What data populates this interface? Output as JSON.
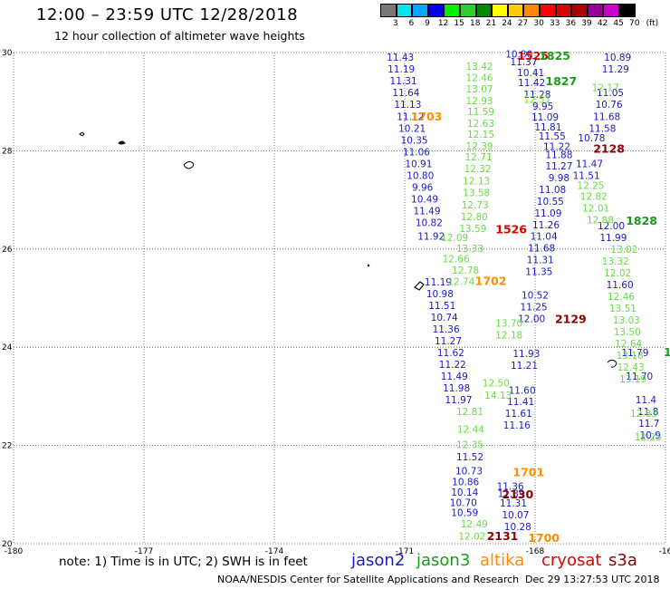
{
  "header": {
    "title": "12:00  –  23:59 UTC 12/28/2018",
    "subtitle": "12 hour collection of altimeter wave heights"
  },
  "colors": {
    "jason2": "#1a1acc",
    "jason3": "#1a9a1a",
    "altika": "#ff8c00",
    "cryosat": "#dd0000",
    "s3a": "#8b0000",
    "light_green": "#66dd44"
  },
  "color_scale": {
    "unit": "(ft)",
    "bins": [
      {
        "label": "3",
        "color": "#777777"
      },
      {
        "label": "6",
        "color": "#00e5ee"
      },
      {
        "label": "9",
        "color": "#00a8ff"
      },
      {
        "label": "12",
        "color": "#0000ee"
      },
      {
        "label": "15",
        "color": "#00ee00"
      },
      {
        "label": "18",
        "color": "#33cc33"
      },
      {
        "label": "21",
        "color": "#008800"
      },
      {
        "label": "24",
        "color": "#ffff00"
      },
      {
        "label": "27",
        "color": "#ffcc00"
      },
      {
        "label": "30",
        "color": "#ff8800"
      },
      {
        "label": "33",
        "color": "#ff0000"
      },
      {
        "label": "36",
        "color": "#dd0000"
      },
      {
        "label": "39",
        "color": "#aa0000"
      },
      {
        "label": "42",
        "color": "#990099"
      },
      {
        "label": "45",
        "color": "#cc00cc"
      },
      {
        "label": "70",
        "color": "#000000"
      }
    ]
  },
  "axes": {
    "lon_labels": [
      "-180",
      "-177",
      "-174",
      "-171",
      "-168",
      "-16"
    ],
    "lat_labels": [
      "30",
      "28",
      "26",
      "24",
      "22",
      "20"
    ]
  },
  "footer": {
    "note": "note:  1) Time is in UTC;  2) SWH is in feet",
    "credit": "NOAA/NESDIS Center for Satellite Applications and Research",
    "timestamp": "Dec 29 13:27:53 UTC 2018"
  },
  "satellites": [
    {
      "name": "jason2",
      "color": "#1a1acc"
    },
    {
      "name": "jason3",
      "color": "#1a9a1a"
    },
    {
      "name": "altika",
      "color": "#ff8c00"
    },
    {
      "name": "cryosat",
      "color": "#dd0000"
    },
    {
      "name": "s3a",
      "color": "#8b0000"
    }
  ],
  "tracks": [
    {
      "satellite": "jason2",
      "color": "#1a1acc",
      "points": [
        {
          "lat": 29.83,
          "lon": -171.1,
          "swh": "11.43"
        },
        {
          "lat": 29.59,
          "lon": -171.08,
          "swh": "11.19"
        },
        {
          "lat": 29.35,
          "lon": -171.03,
          "swh": "11.31"
        },
        {
          "lat": 29.11,
          "lon": -170.97,
          "swh": "11.64"
        },
        {
          "lat": 28.87,
          "lon": -170.93,
          "swh": "11.13"
        },
        {
          "lat": 28.63,
          "lon": -170.87,
          "swh": "11.12"
        },
        {
          "lat": 28.39,
          "lon": -170.83,
          "swh": "10.21"
        },
        {
          "lat": 28.15,
          "lon": -170.78,
          "swh": "10.35"
        },
        {
          "lat": 27.91,
          "lon": -170.73,
          "swh": "11.06"
        },
        {
          "lat": 27.67,
          "lon": -170.68,
          "swh": "10.91"
        },
        {
          "lat": 27.43,
          "lon": -170.64,
          "swh": "10.80"
        },
        {
          "lat": 27.19,
          "lon": -170.59,
          "swh": "9.96"
        },
        {
          "lat": 26.95,
          "lon": -170.54,
          "swh": "10.49"
        },
        {
          "lat": 26.71,
          "lon": -170.49,
          "swh": "11.49"
        },
        {
          "lat": 26.47,
          "lon": -170.44,
          "swh": "10.82"
        },
        {
          "lat": 26.19,
          "lon": -170.39,
          "swh": "11.92"
        },
        {
          "lat": 25.26,
          "lon": -170.23,
          "swh": "11.19"
        },
        {
          "lat": 25.02,
          "lon": -170.19,
          "swh": "10.98"
        },
        {
          "lat": 24.78,
          "lon": -170.14,
          "swh": "11.51"
        },
        {
          "lat": 24.54,
          "lon": -170.09,
          "swh": "10.74"
        },
        {
          "lat": 24.3,
          "lon": -170.05,
          "swh": "11.36"
        },
        {
          "lat": 24.06,
          "lon": -170.0,
          "swh": "11.27"
        },
        {
          "lat": 23.82,
          "lon": -169.94,
          "swh": "11.62"
        },
        {
          "lat": 23.58,
          "lon": -169.9,
          "swh": "11.22"
        },
        {
          "lat": 23.34,
          "lon": -169.86,
          "swh": "11.49"
        },
        {
          "lat": 23.1,
          "lon": -169.81,
          "swh": "11.98"
        },
        {
          "lat": 22.86,
          "lon": -169.76,
          "swh": "11.97"
        },
        {
          "lat": 21.7,
          "lon": -169.5,
          "swh": "11.52"
        },
        {
          "lat": 21.41,
          "lon": -169.52,
          "swh": "10.73"
        },
        {
          "lat": 21.19,
          "lon": -169.6,
          "swh": "10.86"
        },
        {
          "lat": 20.98,
          "lon": -169.62,
          "swh": "10.14"
        },
        {
          "lat": 20.77,
          "lon": -169.65,
          "swh": "10.70"
        },
        {
          "lat": 20.56,
          "lon": -169.62,
          "swh": "10.59"
        }
      ]
    },
    {
      "satellite": "jason2",
      "color": "#1a1acc",
      "points": [
        {
          "lat": 29.9,
          "lon": -168.37,
          "swh": "10.80"
        },
        {
          "lat": 29.74,
          "lon": -168.26,
          "swh": "11.37"
        },
        {
          "lat": 29.52,
          "lon": -168.1,
          "swh": "10.41"
        },
        {
          "lat": 29.32,
          "lon": -168.08,
          "swh": "11.42"
        },
        {
          "lat": 29.08,
          "lon": -167.95,
          "swh": "11.28"
        },
        {
          "lat": 28.84,
          "lon": -167.82,
          "swh": "9.95"
        },
        {
          "lat": 28.62,
          "lon": -167.77,
          "swh": "11.09"
        },
        {
          "lat": 28.41,
          "lon": -167.7,
          "swh": "11.81"
        },
        {
          "lat": 28.23,
          "lon": -167.61,
          "swh": "11.55"
        },
        {
          "lat": 28.02,
          "lon": -167.5,
          "swh": "11.22"
        },
        {
          "lat": 27.85,
          "lon": -167.45,
          "swh": "11.88"
        },
        {
          "lat": 27.62,
          "lon": -167.45,
          "swh": "11.27"
        },
        {
          "lat": 27.38,
          "lon": -167.45,
          "swh": "9.98"
        },
        {
          "lat": 27.14,
          "lon": -167.6,
          "swh": "11.08"
        },
        {
          "lat": 26.9,
          "lon": -167.65,
          "swh": "10.55"
        },
        {
          "lat": 26.66,
          "lon": -167.7,
          "swh": "11.09"
        },
        {
          "lat": 26.42,
          "lon": -167.75,
          "swh": "11.26"
        },
        {
          "lat": 26.19,
          "lon": -167.8,
          "swh": "11.04"
        },
        {
          "lat": 25.95,
          "lon": -167.85,
          "swh": "11.68"
        },
        {
          "lat": 25.71,
          "lon": -167.88,
          "swh": "11.31"
        },
        {
          "lat": 25.47,
          "lon": -167.91,
          "swh": "11.35"
        },
        {
          "lat": 24.99,
          "lon": -168.0,
          "swh": "10.52"
        },
        {
          "lat": 24.75,
          "lon": -168.03,
          "swh": "11.25"
        },
        {
          "lat": 24.51,
          "lon": -168.08,
          "swh": "12.00"
        },
        {
          "lat": 23.8,
          "lon": -168.2,
          "swh": "11.93"
        },
        {
          "lat": 23.56,
          "lon": -168.25,
          "swh": "11.21"
        },
        {
          "lat": 23.05,
          "lon": -168.3,
          "swh": "11.60"
        },
        {
          "lat": 22.82,
          "lon": -168.33,
          "swh": "11.41"
        },
        {
          "lat": 22.58,
          "lon": -168.38,
          "swh": "11.61"
        },
        {
          "lat": 22.34,
          "lon": -168.42,
          "swh": "11.16"
        },
        {
          "lat": 21.1,
          "lon": -168.57,
          "swh": "11.36"
        },
        {
          "lat": 20.95,
          "lon": -168.55,
          "swh": "11.39"
        },
        {
          "lat": 20.76,
          "lon": -168.5,
          "swh": "11.31"
        },
        {
          "lat": 20.52,
          "lon": -168.45,
          "swh": "10.07"
        },
        {
          "lat": 20.28,
          "lon": -168.4,
          "swh": "10.28"
        }
      ]
    },
    {
      "satellite": "jason2",
      "color": "#1a1acc",
      "points": [
        {
          "lat": 29.83,
          "lon": -166.1,
          "swh": "10.89"
        },
        {
          "lat": 29.59,
          "lon": -166.15,
          "swh": "11.29"
        },
        {
          "lat": 29.11,
          "lon": -166.27,
          "swh": "11.05"
        },
        {
          "lat": 28.87,
          "lon": -166.3,
          "swh": "10.76"
        },
        {
          "lat": 28.63,
          "lon": -166.35,
          "swh": "11.68"
        },
        {
          "lat": 28.39,
          "lon": -166.45,
          "swh": "11.58"
        },
        {
          "lat": 28.19,
          "lon": -166.7,
          "swh": "10.78"
        },
        {
          "lat": 27.67,
          "lon": -166.75,
          "swh": "11.47"
        },
        {
          "lat": 27.43,
          "lon": -166.82,
          "swh": "11.51"
        },
        {
          "lat": 26.4,
          "lon": -166.25,
          "swh": "12.00"
        },
        {
          "lat": 26.16,
          "lon": -166.2,
          "swh": "11.99"
        },
        {
          "lat": 25.2,
          "lon": -166.05,
          "swh": "11.60"
        },
        {
          "lat": 23.82,
          "lon": -165.7,
          "swh": "11.79"
        },
        {
          "lat": 23.34,
          "lon": -165.6,
          "swh": "11.70"
        },
        {
          "lat": 22.86,
          "lon": -165.45,
          "swh": "11.4"
        },
        {
          "lat": 22.62,
          "lon": -165.4,
          "swh": "11.8"
        },
        {
          "lat": 22.38,
          "lon": -165.38,
          "swh": "11.7"
        },
        {
          "lat": 22.14,
          "lon": -165.35,
          "swh": "10.9"
        }
      ]
    },
    {
      "satellite": "jason3",
      "color": "#66dd44",
      "points": [
        {
          "lat": 29.65,
          "lon": -169.28,
          "swh": "13.42"
        },
        {
          "lat": 29.42,
          "lon": -169.28,
          "swh": "12.46"
        },
        {
          "lat": 29.19,
          "lon": -169.28,
          "swh": "13.07"
        },
        {
          "lat": 28.95,
          "lon": -169.28,
          "swh": "12.93"
        },
        {
          "lat": 28.73,
          "lon": -169.25,
          "swh": "11.59"
        },
        {
          "lat": 28.49,
          "lon": -169.25,
          "swh": "12.63"
        },
        {
          "lat": 28.27,
          "lon": -169.25,
          "swh": "12.15"
        },
        {
          "lat": 28.03,
          "lon": -169.28,
          "swh": "12.39"
        },
        {
          "lat": 27.8,
          "lon": -169.3,
          "swh": "12.71"
        },
        {
          "lat": 27.56,
          "lon": -169.32,
          "swh": "12.32"
        },
        {
          "lat": 27.32,
          "lon": -169.35,
          "swh": "12.13"
        },
        {
          "lat": 27.08,
          "lon": -169.35,
          "swh": "13.58"
        },
        {
          "lat": 26.83,
          "lon": -169.38,
          "swh": "12.73"
        },
        {
          "lat": 26.59,
          "lon": -169.4,
          "swh": "12.80"
        },
        {
          "lat": 26.35,
          "lon": -169.43,
          "swh": "13.59"
        },
        {
          "lat": 26.16,
          "lon": -169.85,
          "swh": "12.09"
        },
        {
          "lat": 25.94,
          "lon": -169.5,
          "swh": "13.33"
        },
        {
          "lat": 25.73,
          "lon": -169.82,
          "swh": "12.66"
        },
        {
          "lat": 25.5,
          "lon": -169.6,
          "swh": "12.78"
        },
        {
          "lat": 25.27,
          "lon": -169.7,
          "swh": "12.74"
        },
        {
          "lat": 24.42,
          "lon": -168.6,
          "swh": "13.70"
        },
        {
          "lat": 24.18,
          "lon": -168.6,
          "swh": "12.18"
        },
        {
          "lat": 23.2,
          "lon": -168.9,
          "swh": "12.50"
        },
        {
          "lat": 22.95,
          "lon": -168.85,
          "swh": "14.13"
        },
        {
          "lat": 22.62,
          "lon": -169.5,
          "swh": "12.81"
        },
        {
          "lat": 22.26,
          "lon": -169.48,
          "swh": "12.44"
        },
        {
          "lat": 21.95,
          "lon": -169.5,
          "swh": "12.35"
        },
        {
          "lat": 20.33,
          "lon": -169.4,
          "swh": "12.49"
        },
        {
          "lat": 20.08,
          "lon": -169.45,
          "swh": "12.02"
        }
      ]
    },
    {
      "satellite": "jason3",
      "color": "#66dd44",
      "points": [
        {
          "lat": 29.22,
          "lon": -166.38,
          "swh": "12.17"
        },
        {
          "lat": 28.98,
          "lon": -167.95,
          "swh": "12.51"
        },
        {
          "lat": 27.22,
          "lon": -166.72,
          "swh": "12.25"
        },
        {
          "lat": 27.0,
          "lon": -166.65,
          "swh": "12.82"
        },
        {
          "lat": 26.76,
          "lon": -166.6,
          "swh": "12.01"
        },
        {
          "lat": 26.52,
          "lon": -166.5,
          "swh": "12.88"
        },
        {
          "lat": 25.92,
          "lon": -165.95,
          "swh": "13.02"
        },
        {
          "lat": 25.68,
          "lon": -166.15,
          "swh": "13.32"
        },
        {
          "lat": 25.44,
          "lon": -166.1,
          "swh": "12.02"
        },
        {
          "lat": 24.96,
          "lon": -166.02,
          "swh": "12.46"
        },
        {
          "lat": 24.72,
          "lon": -165.98,
          "swh": "13.51"
        },
        {
          "lat": 24.48,
          "lon": -165.9,
          "swh": "13.03"
        },
        {
          "lat": 24.24,
          "lon": -165.88,
          "swh": "13.50"
        },
        {
          "lat": 24.0,
          "lon": -165.85,
          "swh": "12.64"
        },
        {
          "lat": 23.76,
          "lon": -165.82,
          "swh": "13.18"
        },
        {
          "lat": 23.52,
          "lon": -165.8,
          "swh": "12.43"
        },
        {
          "lat": 23.28,
          "lon": -165.75,
          "swh": "13.19"
        },
        {
          "lat": 22.58,
          "lon": -165.5,
          "swh": "12.83"
        },
        {
          "lat": 22.1,
          "lon": -165.4,
          "swh": "12.25"
        }
      ]
    }
  ],
  "pass_labels": [
    {
      "text": "1525",
      "color": "#dd0000",
      "lat": 29.85,
      "lon": -168.05
    },
    {
      "text": "1825",
      "color": "#1a9a1a",
      "lat": 29.85,
      "lon": -167.55
    },
    {
      "text": "1827",
      "color": "#1a9a1a",
      "lat": 29.34,
      "lon": -167.4
    },
    {
      "text": "1703",
      "color": "#ff8c00",
      "lat": 28.62,
      "lon": -170.5
    },
    {
      "text": "2128",
      "color": "#8b0000",
      "lat": 27.96,
      "lon": -166.3
    },
    {
      "text": "1828",
      "color": "#1a9a1a",
      "lat": 26.49,
      "lon": -165.55
    },
    {
      "text": "1526",
      "color": "#dd0000",
      "lat": 26.32,
      "lon": -168.55
    },
    {
      "text": "1702",
      "color": "#ff8c00",
      "lat": 25.27,
      "lon": -169.02
    },
    {
      "text": "2129",
      "color": "#8b0000",
      "lat": 24.49,
      "lon": -167.18
    },
    {
      "text": "1",
      "color": "#1a9a1a",
      "lat": 23.82,
      "lon": -164.95
    },
    {
      "text": "1701",
      "color": "#ff8c00",
      "lat": 21.37,
      "lon": -168.15
    },
    {
      "text": "2130",
      "color": "#8b0000",
      "lat": 20.92,
      "lon": -168.4
    },
    {
      "text": "2131",
      "color": "#8b0000",
      "lat": 20.07,
      "lon": -168.75
    },
    {
      "text": "1700",
      "color": "#ff8c00",
      "lat": 20.04,
      "lon": -167.8
    }
  ]
}
